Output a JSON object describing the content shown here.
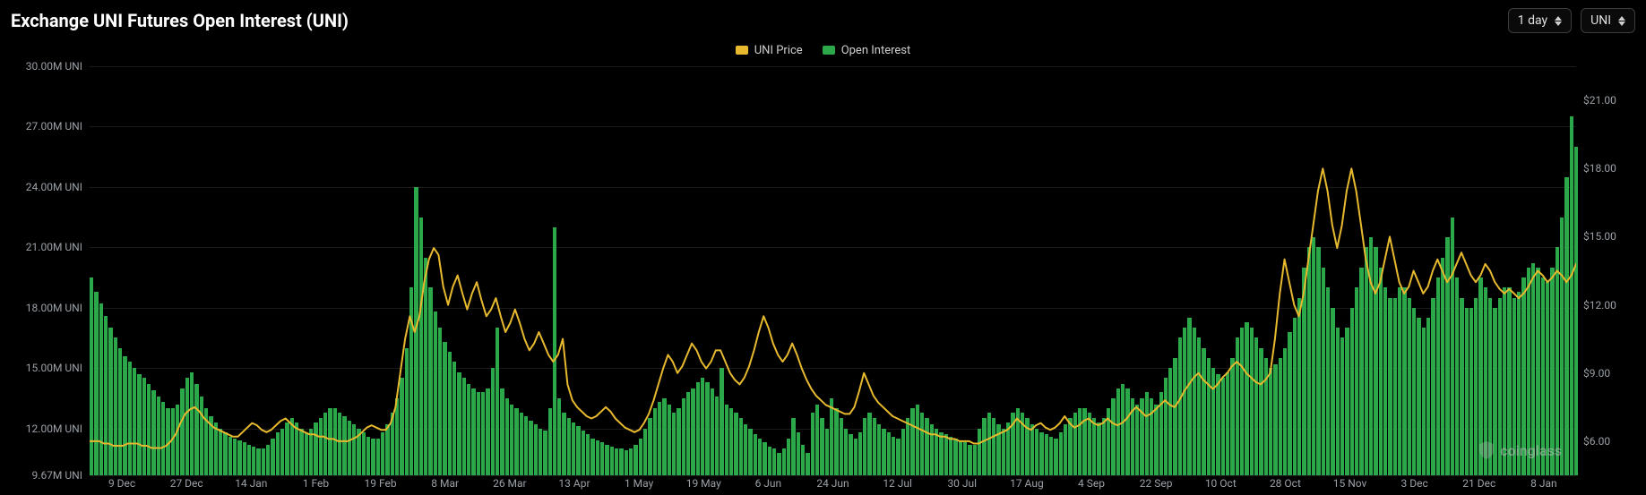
{
  "header": {
    "title": "Exchange UNI Futures Open Interest (UNI)"
  },
  "controls": {
    "timeframe": {
      "label": "1 day"
    },
    "unit": {
      "label": "UNI"
    }
  },
  "legend": {
    "items": [
      {
        "label": "UNI Price",
        "color": "#e7b92e"
      },
      {
        "label": "Open Interest",
        "color": "#2ba84a"
      }
    ]
  },
  "chart": {
    "type": "bar+line",
    "background_color": "#000000",
    "grid_color": "#1a1a1a",
    "left_axis": {
      "label_suffix": " UNI",
      "min": 9.67,
      "max": 30.0,
      "ticks": [
        {
          "value": 30.0,
          "label": "30.00M UNI"
        },
        {
          "value": 27.0,
          "label": "27.00M UNI"
        },
        {
          "value": 24.0,
          "label": "24.00M UNI"
        },
        {
          "value": 21.0,
          "label": "21.00M UNI"
        },
        {
          "value": 18.0,
          "label": "18.00M UNI"
        },
        {
          "value": 15.0,
          "label": "15.00M UNI"
        },
        {
          "value": 12.0,
          "label": "12.00M UNI"
        },
        {
          "value": 9.67,
          "label": "9.67M UNI"
        }
      ],
      "font_size": 12,
      "color": "#9aa0a6"
    },
    "right_axis": {
      "min": 4.5,
      "max": 22.5,
      "ticks": [
        {
          "value": 21.0,
          "label": "$21.00"
        },
        {
          "value": 18.0,
          "label": "$18.00"
        },
        {
          "value": 15.0,
          "label": "$15.00"
        },
        {
          "value": 12.0,
          "label": "$12.00"
        },
        {
          "value": 9.0,
          "label": "$9.00"
        },
        {
          "value": 6.0,
          "label": "$6.00"
        }
      ],
      "font_size": 12,
      "color": "#9aa0a6"
    },
    "x_axis": {
      "labels": [
        "9 Dec",
        "27 Dec",
        "14 Jan",
        "1 Feb",
        "19 Feb",
        "8 Mar",
        "26 Mar",
        "13 Apr",
        "1 May",
        "19 May",
        "6 Jun",
        "24 Jun",
        "12 Jul",
        "30 Jul",
        "17 Aug",
        "4 Sep",
        "22 Sep",
        "10 Oct",
        "28 Oct",
        "15 Nov",
        "3 Dec",
        "21 Dec",
        "8 Jan"
      ],
      "font_size": 12,
      "color": "#9aa0a6"
    },
    "bars": {
      "color": "#2ba84a",
      "values_m_uni": [
        19.5,
        18.8,
        18.2,
        17.6,
        17.0,
        16.5,
        16.0,
        15.6,
        15.3,
        15.0,
        14.7,
        14.5,
        14.2,
        13.9,
        13.6,
        13.3,
        13.0,
        13.0,
        13.2,
        14.0,
        14.5,
        14.8,
        14.2,
        13.6,
        13.0,
        12.6,
        12.3,
        12.0,
        11.8,
        11.6,
        11.5,
        11.4,
        11.3,
        11.2,
        11.1,
        11.0,
        11.0,
        11.2,
        11.5,
        11.8,
        12.0,
        12.3,
        12.5,
        12.3,
        12.0,
        11.8,
        12.0,
        12.3,
        12.5,
        12.8,
        13.0,
        13.0,
        12.8,
        12.6,
        12.4,
        12.2,
        12.0,
        11.8,
        11.6,
        11.5,
        11.5,
        11.8,
        12.2,
        12.8,
        13.5,
        14.5,
        16.0,
        19.0,
        24.0,
        22.5,
        20.5,
        19.0,
        17.8,
        17.0,
        16.3,
        15.8,
        15.3,
        14.8,
        14.5,
        14.2,
        14.0,
        13.8,
        13.8,
        14.0,
        15.0,
        17.0,
        14.0,
        13.5,
        13.2,
        13.0,
        12.8,
        12.6,
        12.4,
        12.2,
        12.0,
        11.9,
        13.0,
        22.0,
        13.5,
        12.8,
        12.5,
        12.3,
        12.1,
        11.9,
        11.7,
        11.5,
        11.4,
        11.3,
        11.2,
        11.1,
        11.0,
        11.0,
        10.9,
        11.0,
        11.2,
        11.5,
        12.0,
        12.5,
        13.0,
        13.3,
        13.5,
        13.2,
        12.8,
        13.0,
        13.5,
        13.8,
        14.0,
        14.3,
        14.5,
        14.3,
        14.0,
        13.6,
        15.0,
        13.2,
        13.0,
        12.8,
        12.5,
        12.2,
        12.0,
        11.7,
        11.5,
        11.3,
        11.1,
        11.0,
        10.8,
        11.0,
        11.5,
        12.5,
        11.8,
        11.2,
        10.8,
        12.8,
        13.2,
        12.5,
        12.0,
        13.5,
        13.0,
        12.5,
        12.0,
        11.7,
        11.5,
        11.8,
        12.5,
        12.8,
        12.5,
        12.2,
        12.0,
        11.8,
        11.6,
        11.5,
        12.0,
        12.5,
        13.0,
        13.2,
        12.8,
        12.5,
        12.2,
        12.0,
        11.8,
        11.7,
        11.6,
        11.5,
        11.4,
        11.3,
        11.2,
        11.2,
        12.0,
        12.5,
        12.8,
        12.5,
        12.2,
        12.0,
        12.3,
        12.8,
        13.0,
        12.8,
        12.5,
        12.2,
        12.0,
        11.8,
        11.7,
        11.6,
        11.5,
        11.8,
        12.2,
        12.5,
        12.8,
        13.0,
        13.0,
        12.8,
        12.5,
        12.3,
        12.5,
        13.0,
        13.5,
        14.0,
        14.2,
        14.0,
        13.5,
        13.2,
        13.5,
        13.8,
        13.5,
        13.2,
        13.8,
        14.5,
        15.0,
        15.5,
        16.5,
        17.0,
        17.5,
        17.0,
        16.5,
        16.0,
        15.5,
        15.0,
        14.7,
        14.5,
        14.8,
        15.5,
        16.5,
        17.0,
        17.3,
        17.0,
        16.5,
        16.0,
        15.5,
        15.0,
        15.2,
        15.5,
        16.0,
        16.8,
        17.5,
        18.5,
        20.0,
        21.0,
        21.5,
        21.0,
        20.0,
        19.0,
        18.0,
        17.0,
        16.5,
        17.0,
        18.0,
        19.0,
        20.0,
        21.0,
        21.5,
        21.0,
        20.0,
        19.0,
        18.5,
        18.5,
        19.0,
        19.0,
        18.5,
        18.0,
        17.5,
        17.0,
        17.5,
        18.5,
        19.5,
        20.5,
        21.5,
        22.5,
        19.5,
        18.5,
        18.0,
        18.0,
        18.5,
        19.5,
        19.0,
        18.5,
        18.0,
        18.5,
        19.0,
        19.0,
        18.5,
        18.8,
        19.5,
        20.0,
        20.2,
        20.0,
        19.5,
        19.3,
        20.0,
        21.0,
        22.5,
        24.5,
        27.5,
        26.0
      ]
    },
    "line": {
      "color": "#e7b92e",
      "width": 2,
      "values_usd": [
        6.0,
        6.0,
        6.0,
        5.9,
        5.9,
        5.8,
        5.8,
        5.8,
        5.9,
        5.9,
        5.9,
        5.8,
        5.8,
        5.7,
        5.7,
        5.7,
        5.8,
        6.0,
        6.3,
        6.8,
        7.2,
        7.4,
        7.5,
        7.3,
        7.0,
        6.8,
        6.6,
        6.5,
        6.4,
        6.3,
        6.2,
        6.2,
        6.4,
        6.6,
        6.8,
        6.7,
        6.5,
        6.4,
        6.5,
        6.7,
        6.9,
        7.0,
        6.8,
        6.6,
        6.5,
        6.4,
        6.3,
        6.3,
        6.2,
        6.2,
        6.1,
        6.1,
        6.0,
        6.0,
        6.0,
        6.1,
        6.2,
        6.4,
        6.6,
        6.7,
        6.6,
        6.5,
        6.5,
        6.8,
        7.5,
        9.0,
        10.5,
        11.5,
        10.8,
        11.5,
        13.0,
        14.0,
        14.5,
        14.2,
        12.8,
        12.0,
        12.8,
        13.3,
        12.5,
        11.8,
        12.5,
        13.0,
        12.2,
        11.5,
        11.8,
        12.3,
        11.5,
        10.8,
        11.2,
        11.8,
        11.2,
        10.5,
        10.0,
        10.3,
        10.8,
        10.3,
        9.8,
        9.5,
        9.8,
        10.5,
        8.5,
        7.8,
        7.5,
        7.3,
        7.1,
        7.0,
        7.1,
        7.3,
        7.5,
        7.3,
        7.0,
        6.8,
        6.6,
        6.5,
        6.4,
        6.5,
        6.8,
        7.2,
        7.8,
        8.5,
        9.2,
        9.8,
        9.5,
        9.0,
        9.3,
        9.8,
        10.3,
        10.0,
        9.5,
        9.2,
        9.5,
        10.0,
        10.0,
        9.5,
        9.0,
        8.7,
        8.5,
        8.8,
        9.3,
        10.0,
        10.8,
        11.5,
        11.0,
        10.3,
        9.8,
        9.5,
        9.8,
        10.3,
        9.8,
        9.2,
        8.7,
        8.3,
        8.0,
        7.8,
        7.6,
        7.5,
        7.4,
        7.3,
        7.2,
        7.2,
        7.5,
        8.2,
        9.0,
        8.5,
        8.0,
        7.7,
        7.5,
        7.3,
        7.1,
        7.0,
        6.9,
        6.8,
        6.7,
        6.6,
        6.5,
        6.4,
        6.3,
        6.3,
        6.2,
        6.2,
        6.1,
        6.1,
        6.0,
        6.0,
        6.0,
        5.9,
        5.9,
        6.0,
        6.1,
        6.2,
        6.3,
        6.4,
        6.5,
        6.7,
        7.0,
        6.8,
        6.6,
        6.5,
        6.7,
        6.8,
        6.6,
        6.5,
        6.6,
        6.8,
        7.1,
        6.8,
        6.6,
        6.7,
        6.9,
        7.0,
        6.8,
        6.7,
        6.8,
        7.0,
        6.8,
        6.7,
        6.8,
        7.0,
        7.3,
        7.5,
        7.3,
        7.1,
        7.2,
        7.4,
        7.6,
        7.8,
        7.6,
        7.5,
        7.8,
        8.2,
        8.5,
        8.8,
        9.0,
        8.7,
        8.5,
        8.3,
        8.5,
        8.8,
        9.0,
        9.3,
        9.5,
        9.3,
        9.0,
        8.8,
        8.6,
        8.5,
        8.7,
        9.0,
        10.5,
        12.5,
        14.0,
        13.0,
        12.0,
        11.5,
        12.5,
        14.0,
        15.5,
        17.0,
        18.0,
        17.0,
        15.5,
        14.5,
        15.5,
        17.0,
        18.0,
        17.0,
        15.5,
        14.0,
        13.0,
        12.5,
        13.0,
        14.0,
        15.0,
        14.0,
        13.0,
        12.5,
        12.8,
        13.5,
        13.0,
        12.5,
        12.8,
        13.5,
        14.0,
        13.5,
        13.0,
        13.3,
        13.8,
        14.3,
        13.8,
        13.3,
        13.0,
        13.3,
        13.8,
        13.5,
        13.0,
        12.7,
        12.5,
        12.7,
        12.5,
        12.3,
        12.5,
        12.8,
        13.2,
        13.5,
        13.3,
        13.0,
        13.2,
        13.5,
        13.3,
        13.0,
        13.3,
        13.8
      ]
    },
    "watermark": "coinglass"
  }
}
